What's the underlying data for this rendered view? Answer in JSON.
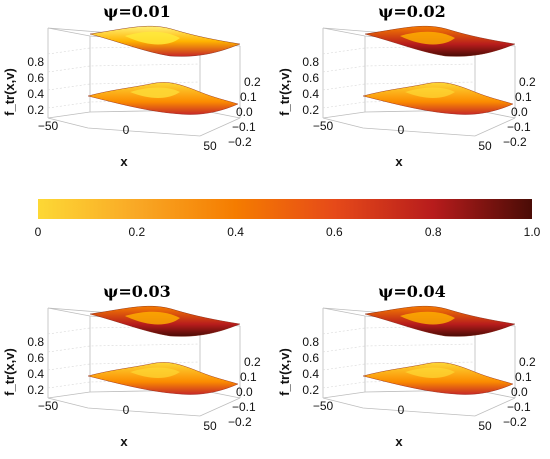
{
  "chart_data": {
    "type": "surface3d",
    "colormap": [
      "#fdd835",
      "#f9a825",
      "#f57c00",
      "#e64a19",
      "#c62828",
      "#8b1a0e",
      "#4a0c06"
    ],
    "panels": [
      {
        "title": "ψ=0.01",
        "xlabel": "x",
        "zlabel": "f_tr(x,v)",
        "xticks": [
          "−50",
          "0",
          "50"
        ],
        "vticks": [
          "0.2",
          "0.1",
          "0.0",
          "−0.1",
          "−0.2"
        ],
        "zticks": [
          "0.8",
          "0.6",
          "0.4",
          "0.2"
        ]
      },
      {
        "title": "ψ=0.02",
        "xlabel": "x",
        "zlabel": "f_tr(x,v)",
        "xticks": [
          "−50",
          "0",
          "50"
        ],
        "vticks": [
          "0.2",
          "0.1",
          "0.0",
          "−0.1",
          "−0.2"
        ],
        "zticks": [
          "0.8",
          "0.6",
          "0.4",
          "0.2"
        ]
      },
      {
        "title": "ψ=0.03",
        "xlabel": "x",
        "zlabel": "f_tr(x,v)",
        "xticks": [
          "−50",
          "0",
          "50"
        ],
        "vticks": [
          "0.2",
          "0.1",
          "0.0",
          "−0.1",
          "−0.2"
        ],
        "zticks": [
          "0.8",
          "0.6",
          "0.4",
          "0.2"
        ]
      },
      {
        "title": "ψ=0.04",
        "xlabel": "x",
        "zlabel": "f_tr(x,v)",
        "xticks": [
          "−50",
          "0",
          "50"
        ],
        "vticks": [
          "0.2",
          "0.1",
          "0.0",
          "−0.1",
          "−0.2"
        ],
        "zticks": [
          "0.8",
          "0.6",
          "0.4",
          "0.2"
        ]
      }
    ],
    "colorbar": {
      "ticks": [
        "0",
        "0.2",
        "0.4",
        "0.6",
        "0.8",
        "1.0"
      ],
      "range": [
        0,
        1.0
      ]
    }
  }
}
